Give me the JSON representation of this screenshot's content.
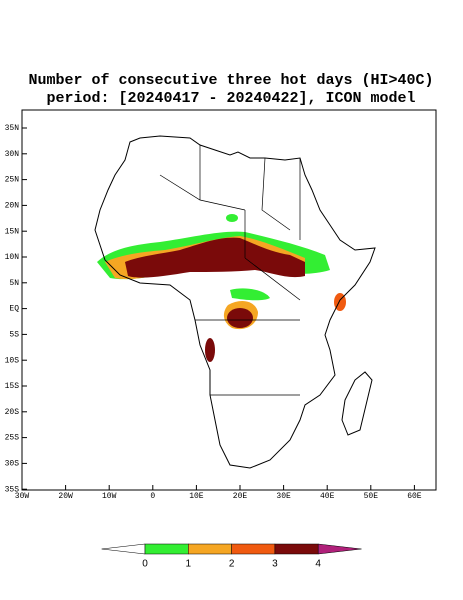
{
  "title": {
    "line1": "Number of consecutive three hot days (HI>40C)",
    "line2": "period: [20240417 - 20240422], ICON model"
  },
  "map": {
    "lat_labels": [
      "35N",
      "30N",
      "25N",
      "20N",
      "15N",
      "10N",
      "5N",
      "EQ",
      "5S",
      "10S",
      "15S",
      "20S",
      "25S",
      "30S",
      "35S"
    ],
    "lon_labels": [
      "30W",
      "20W",
      "10W",
      "0",
      "10E",
      "20E",
      "30E",
      "40E",
      "50E",
      "60E"
    ]
  },
  "colorbar": {
    "levels": [
      0,
      1,
      2,
      3,
      4
    ],
    "colors": [
      "#ffffff",
      "#33ee33",
      "#f5a623",
      "#f05a10",
      "#7a0a0a",
      "#b0207a"
    ]
  }
}
